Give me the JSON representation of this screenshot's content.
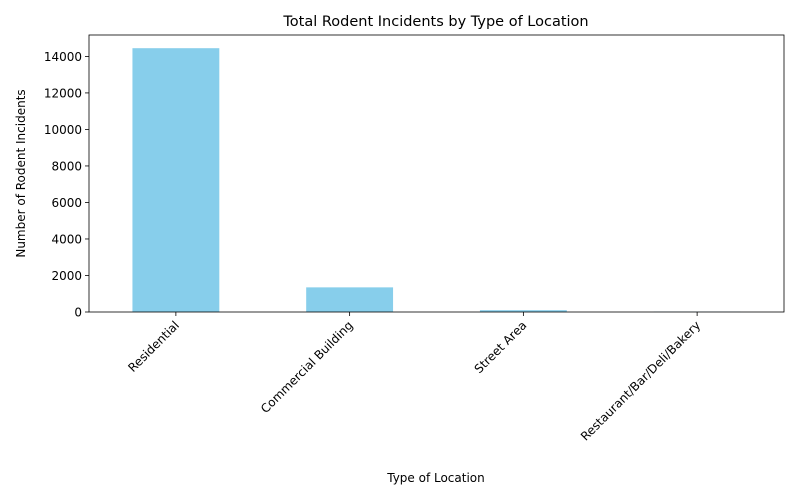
{
  "chart_data": {
    "type": "bar",
    "title": "Total Rodent Incidents by Type of Location",
    "xlabel": "Type of Location",
    "ylabel": "Number of Rodent Incidents",
    "categories": [
      "Residential",
      "Commercial Building",
      "Street Area",
      "Restaurant/Bar/Deli/Bakery"
    ],
    "values": [
      14450,
      1350,
      100,
      15
    ],
    "ylim": [
      0,
      14450
    ],
    "yticks": [
      0,
      2000,
      4000,
      6000,
      8000,
      10000,
      12000,
      14000
    ],
    "bar_color": "#87CEEB",
    "grid": false,
    "legend": "none",
    "xtick_rotation": 45
  }
}
